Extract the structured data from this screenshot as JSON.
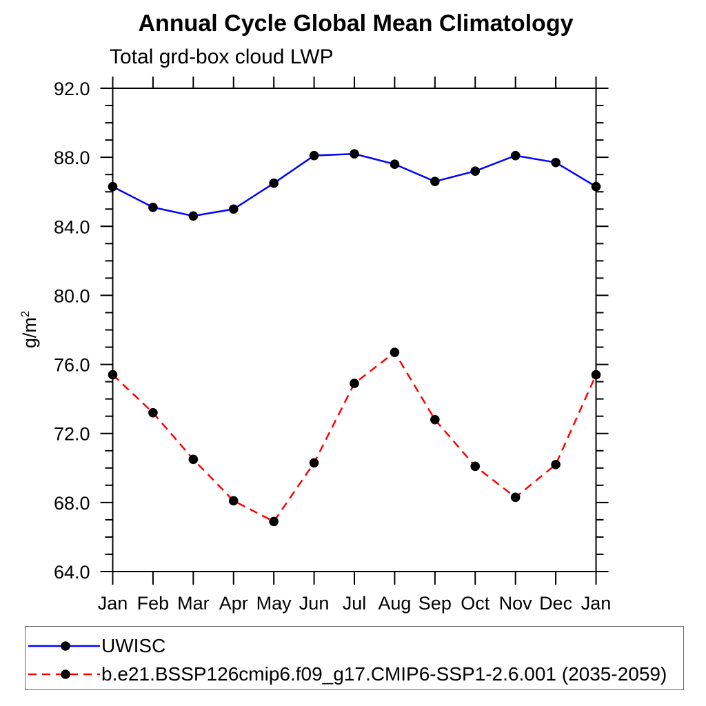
{
  "chart_data": {
    "type": "line",
    "title": "Annual Cycle Global Mean Climatology",
    "subtitle": "Total grd-box cloud LWP",
    "ylabel_base": "g/m",
    "ylabel_sup": "2",
    "categories": [
      "Jan",
      "Feb",
      "Mar",
      "Apr",
      "May",
      "Jun",
      "Jul",
      "Aug",
      "Sep",
      "Oct",
      "Nov",
      "Dec",
      "Jan"
    ],
    "series": [
      {
        "name": "UWISC",
        "color": "#0000ff",
        "line_style": "solid",
        "marker": "filled-circle",
        "marker_color": "#000000",
        "values": [
          86.3,
          85.1,
          84.6,
          85.0,
          86.5,
          88.1,
          88.2,
          87.6,
          86.6,
          87.2,
          88.1,
          87.7,
          86.3
        ]
      },
      {
        "name": "b.e21.BSSP126cmip6.f09_g17.CMIP6-SSP1-2.6.001 (2035-2059)",
        "color": "#ff0000",
        "line_style": "dashed",
        "marker": "filled-circle",
        "marker_color": "#000000",
        "values": [
          75.4,
          73.2,
          70.5,
          68.1,
          66.9,
          70.3,
          74.9,
          76.7,
          72.8,
          70.1,
          68.3,
          70.2,
          75.4
        ]
      }
    ],
    "y_axis": {
      "min": 64.0,
      "max": 92.0,
      "major_step": 4,
      "minor_step": 1,
      "tick_labels": [
        "64.0",
        "68.0",
        "72.0",
        "76.0",
        "80.0",
        "84.0",
        "88.0",
        "92.0"
      ]
    },
    "x_axis": {
      "ticks_on": "months",
      "label_row": "Jan Feb Mar Apr May Jun Jul Aug Sep Oct Nov Dec Jan"
    },
    "grid": false,
    "legend_position": "bottom-left-box",
    "frame_color": "#000000",
    "background": "#ffffff"
  }
}
